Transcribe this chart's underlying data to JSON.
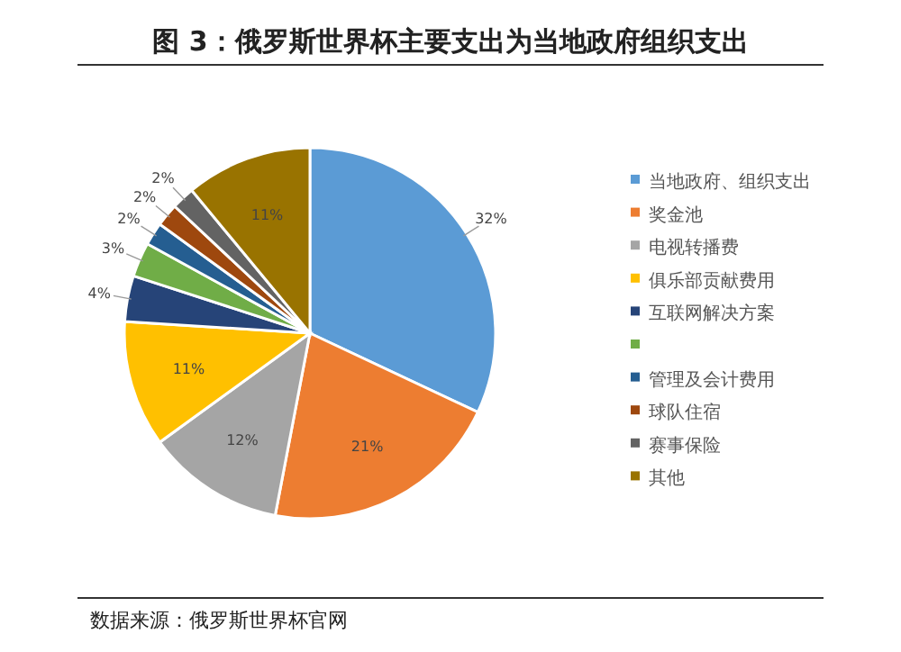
{
  "chart_data": {
    "type": "pie",
    "title": "图 3：俄罗斯世界杯主要支出为当地政府组织支出",
    "categories": [
      "当地政府、组织支出",
      "奖金池",
      "电视转播费",
      "俱乐部贡献费用",
      "互联网解决方案",
      null,
      "管理及会计费用",
      "球队住宿",
      "赛事保险",
      "其他"
    ],
    "values": [
      32,
      21,
      12,
      11,
      4,
      3,
      2,
      2,
      2,
      11
    ],
    "value_labels": [
      "32%",
      "21%",
      "12%",
      "11%",
      "4%",
      "3%",
      "2%",
      "2%",
      "2%",
      "11%"
    ],
    "colors": [
      "#5b9bd5",
      "#ed7d31",
      "#a5a5a5",
      "#ffc000",
      "#264478",
      "#70ad47",
      "#255e91",
      "#9e480e",
      "#636363",
      "#997300"
    ],
    "legend": "right",
    "annotations": [
      "数据来源：俄罗斯世界杯官网"
    ]
  }
}
